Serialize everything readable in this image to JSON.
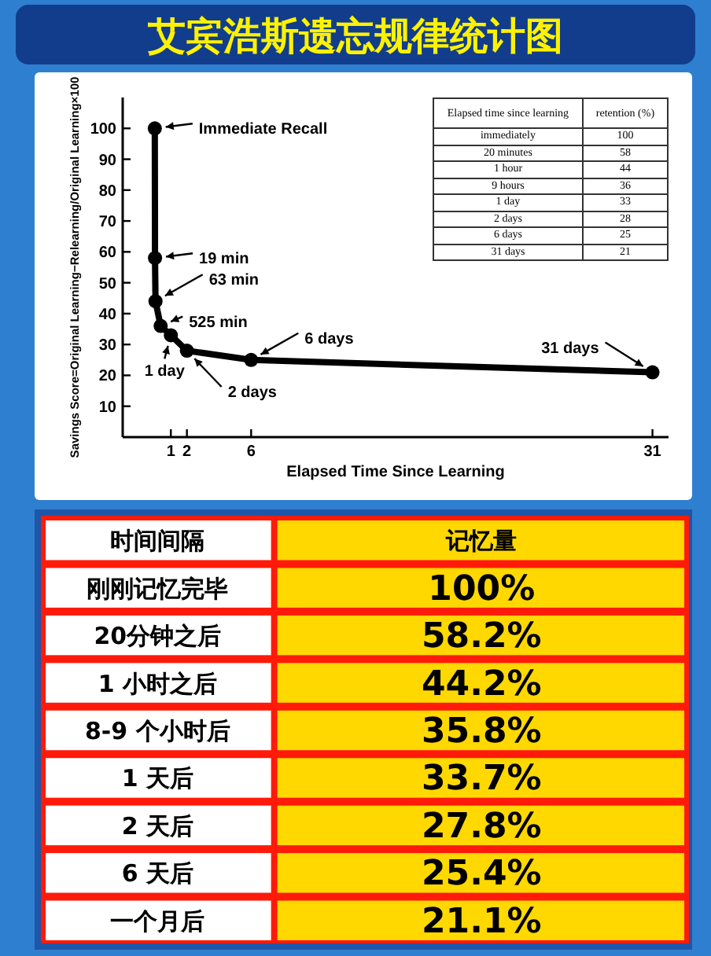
{
  "chart_data": [
    {
      "type": "line",
      "title": "艾宾浩斯遗忘规律统计图",
      "xlabel": "Elapsed Time Since Learning",
      "ylabel": "Savings Score=Original Learning−Relearning/Original Learning×100",
      "x": [
        0,
        0.0132,
        0.0438,
        0.3646,
        1,
        2,
        6,
        31
      ],
      "series": [
        {
          "color": "#000000",
          "values": [
            100,
            58,
            44,
            36,
            33,
            28,
            25,
            21
          ]
        }
      ],
      "xlim": [
        -2,
        32
      ],
      "xticks": [
        1,
        2,
        6,
        31
      ],
      "ylim": [
        0,
        110
      ],
      "yticks": [
        10,
        20,
        30,
        40,
        50,
        60,
        70,
        80,
        90,
        100
      ],
      "marker": "circle",
      "line_style": "solid",
      "grid": false,
      "annotations": [
        {
          "text": "Immediate Recall",
          "x": 0,
          "y": 100
        },
        {
          "text": "19 min",
          "x": 0.0132,
          "y": 58
        },
        {
          "text": "63 min",
          "x": 0.0438,
          "y": 44
        },
        {
          "text": "525 min",
          "x": 0.3646,
          "y": 36
        },
        {
          "text": "1 day",
          "x": 1,
          "y": 33
        },
        {
          "text": "2 days",
          "x": 2,
          "y": 28
        },
        {
          "text": "6 days",
          "x": 6,
          "y": 25
        },
        {
          "text": "31 days",
          "x": 31,
          "y": 21
        },
        "Elapsed time since learning",
        "retention (%)",
        "immediately",
        "100",
        "20 minutes",
        "58",
        "1 hour",
        "44",
        "9 hours",
        "36",
        "1 day",
        "33",
        "2 days",
        "28",
        "6 days",
        "25",
        "31 days",
        "21"
      ]
    },
    {
      "type": "other",
      "categories": [
        "刚刚记忆完毕",
        "20分钟之后",
        "1 小时之后",
        "8-9 个小时后",
        "1 天后",
        "2 天后",
        "6 天后",
        "一个月后"
      ],
      "annotations": [
        "时间间隔",
        "记忆量",
        "100%",
        "58.2%",
        "44.2%",
        "35.8%",
        "33.7%",
        "27.8%",
        "25.4%",
        "21.1%"
      ]
    }
  ]
}
